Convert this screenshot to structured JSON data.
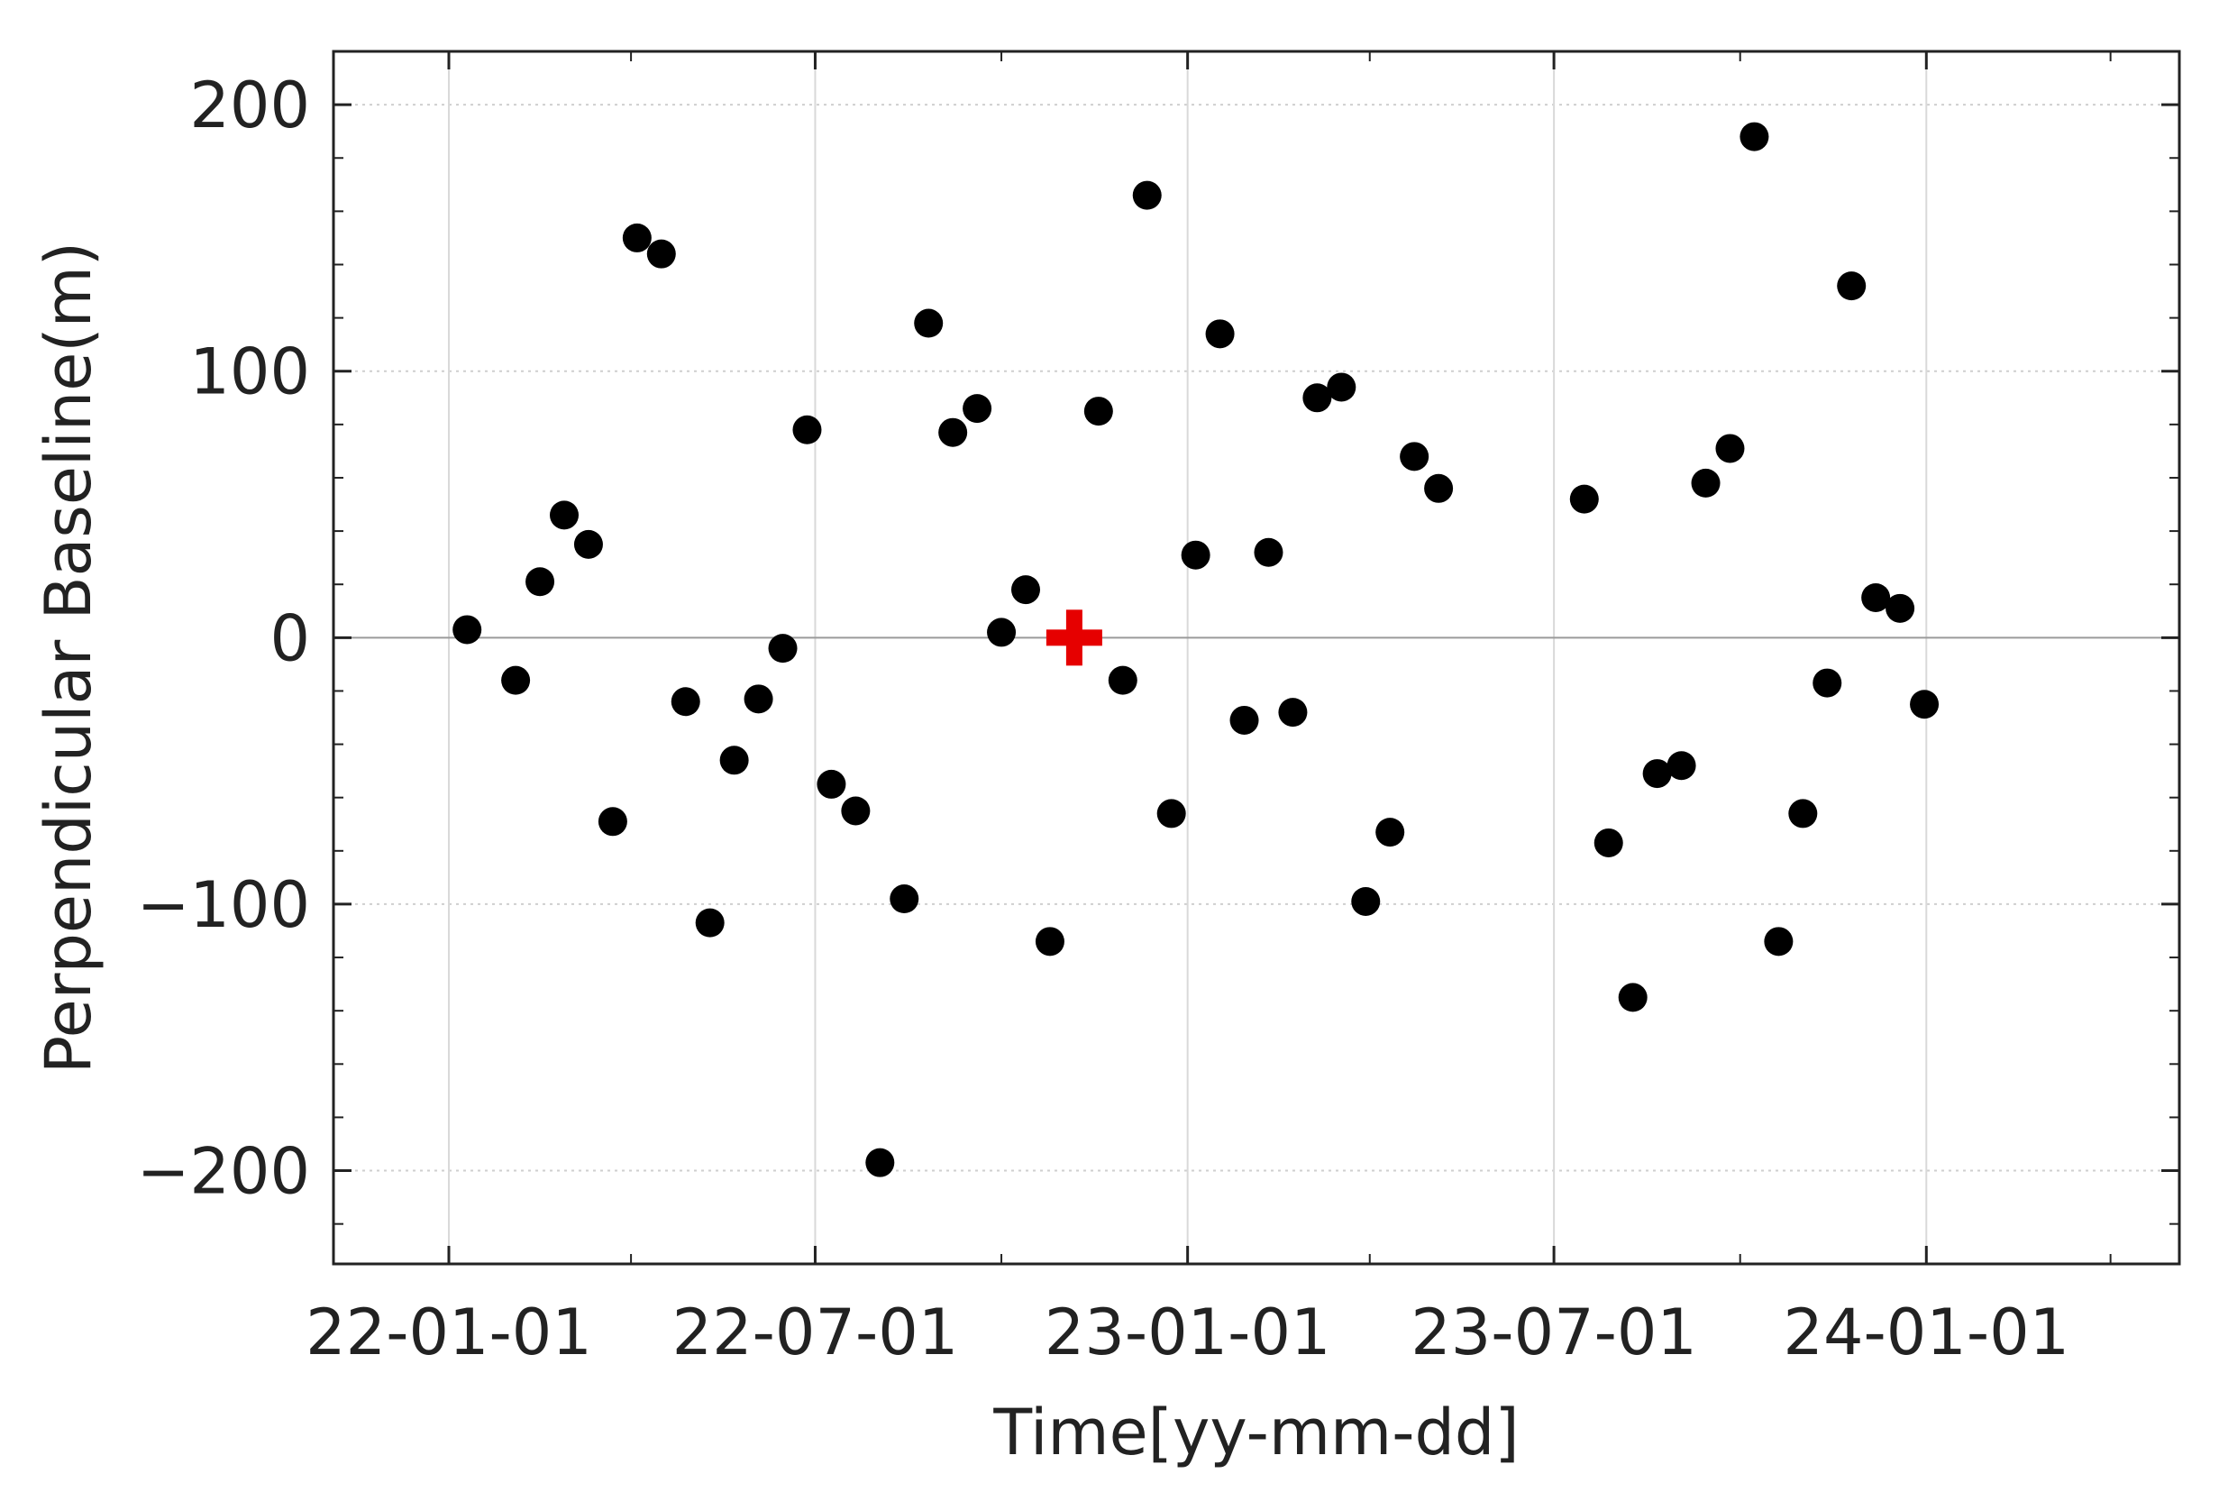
{
  "chart_data": {
    "type": "scatter",
    "title": "",
    "xlabel": "Time[yy-mm-dd]",
    "ylabel": "Perpendicular Baseline(m)",
    "xlim": [
      "2021-11-05",
      "2024-05-05"
    ],
    "ylim": [
      -235,
      220
    ],
    "x_ticks": [
      "22-01-01",
      "22-07-01",
      "23-01-01",
      "23-07-01",
      "24-01-01"
    ],
    "x_tick_dates": [
      "2022-01-01",
      "2022-07-01",
      "2023-01-01",
      "2023-07-01",
      "2024-01-01"
    ],
    "y_ticks": [
      200,
      100,
      0,
      -100,
      -200
    ],
    "y_tick_labels": [
      "200",
      "100",
      "0",
      "−100",
      "−200"
    ],
    "grid": true,
    "zero_line": true,
    "colors": {
      "points": "#000000",
      "reference": "#e60000",
      "grid": "#cfcfcf",
      "axis": "#222222"
    },
    "series": [
      {
        "marker": "circle",
        "points": [
          {
            "x": "2022-01-10",
            "y": 3
          },
          {
            "x": "2022-02-03",
            "y": -16
          },
          {
            "x": "2022-02-15",
            "y": 21
          },
          {
            "x": "2022-02-27",
            "y": 46
          },
          {
            "x": "2022-03-11",
            "y": 35
          },
          {
            "x": "2022-03-23",
            "y": -69
          },
          {
            "x": "2022-04-04",
            "y": 150
          },
          {
            "x": "2022-04-16",
            "y": 144
          },
          {
            "x": "2022-04-28",
            "y": -24
          },
          {
            "x": "2022-05-10",
            "y": -107
          },
          {
            "x": "2022-05-22",
            "y": -46
          },
          {
            "x": "2022-06-03",
            "y": -23
          },
          {
            "x": "2022-06-15",
            "y": -4
          },
          {
            "x": "2022-06-27",
            "y": 78
          },
          {
            "x": "2022-07-09",
            "y": -55
          },
          {
            "x": "2022-07-21",
            "y": -65
          },
          {
            "x": "2022-08-02",
            "y": -197
          },
          {
            "x": "2022-08-14",
            "y": -98
          },
          {
            "x": "2022-08-26",
            "y": 118
          },
          {
            "x": "2022-09-07",
            "y": 77
          },
          {
            "x": "2022-09-19",
            "y": 86
          },
          {
            "x": "2022-10-01",
            "y": 2
          },
          {
            "x": "2022-10-13",
            "y": 18
          },
          {
            "x": "2022-10-25",
            "y": -114
          },
          {
            "x": "2022-11-18",
            "y": 85
          },
          {
            "x": "2022-11-30",
            "y": -16
          },
          {
            "x": "2022-12-12",
            "y": 166
          },
          {
            "x": "2022-12-24",
            "y": -66
          },
          {
            "x": "2023-01-05",
            "y": 31
          },
          {
            "x": "2023-01-17",
            "y": 114
          },
          {
            "x": "2023-01-29",
            "y": -31
          },
          {
            "x": "2023-02-10",
            "y": 32
          },
          {
            "x": "2023-02-22",
            "y": -28
          },
          {
            "x": "2023-03-06",
            "y": 90
          },
          {
            "x": "2023-03-18",
            "y": 94
          },
          {
            "x": "2023-03-30",
            "y": -99
          },
          {
            "x": "2023-04-11",
            "y": -73
          },
          {
            "x": "2023-04-23",
            "y": 68
          },
          {
            "x": "2023-05-05",
            "y": 56
          },
          {
            "x": "2023-07-16",
            "y": 52
          },
          {
            "x": "2023-07-28",
            "y": -77
          },
          {
            "x": "2023-08-09",
            "y": -135
          },
          {
            "x": "2023-08-21",
            "y": -51
          },
          {
            "x": "2023-09-02",
            "y": -48
          },
          {
            "x": "2023-09-14",
            "y": 58
          },
          {
            "x": "2023-09-26",
            "y": 71
          },
          {
            "x": "2023-10-08",
            "y": 188
          },
          {
            "x": "2023-10-20",
            "y": -114
          },
          {
            "x": "2023-11-01",
            "y": -66
          },
          {
            "x": "2023-11-13",
            "y": -17
          },
          {
            "x": "2023-11-25",
            "y": 132
          },
          {
            "x": "2023-12-07",
            "y": 15
          },
          {
            "x": "2023-12-19",
            "y": 11
          },
          {
            "x": "2023-12-31",
            "y": -25
          }
        ]
      },
      {
        "marker": "cross",
        "points": [
          {
            "x": "2022-11-06",
            "y": 0
          }
        ]
      }
    ]
  }
}
